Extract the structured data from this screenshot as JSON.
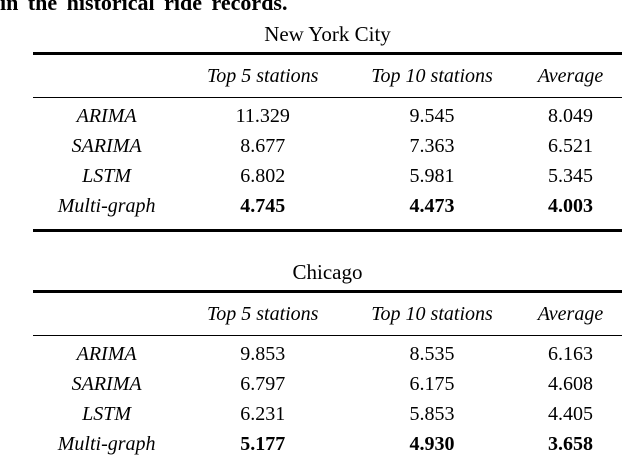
{
  "page": {
    "background_color": "#ffffff",
    "text_color": "#000000",
    "rule_color": "#000000"
  },
  "caption_fragment": "in the historical ride records.",
  "tables": [
    {
      "title": "New York City",
      "columns": [
        "",
        "Top 5 stations",
        "Top 10 stations",
        "Average"
      ],
      "rows": [
        {
          "label": "ARIMA",
          "values": [
            "11.329",
            "9.545",
            "8.049"
          ],
          "bold": false
        },
        {
          "label": "SARIMA",
          "values": [
            "8.677",
            "7.363",
            "6.521"
          ],
          "bold": false
        },
        {
          "label": "LSTM",
          "values": [
            "6.802",
            "5.981",
            "5.345"
          ],
          "bold": false
        },
        {
          "label": "Multi-graph",
          "values": [
            "4.745",
            "4.473",
            "4.003"
          ],
          "bold": true
        }
      ]
    },
    {
      "title": "Chicago",
      "columns": [
        "",
        "Top 5 stations",
        "Top 10 stations",
        "Average"
      ],
      "rows": [
        {
          "label": "ARIMA",
          "values": [
            "9.853",
            "8.535",
            "6.163"
          ],
          "bold": false
        },
        {
          "label": "SARIMA",
          "values": [
            "6.797",
            "6.175",
            "4.608"
          ],
          "bold": false
        },
        {
          "label": "LSTM",
          "values": [
            "6.231",
            "5.853",
            "4.405"
          ],
          "bold": false
        },
        {
          "label": "Multi-graph",
          "values": [
            "5.177",
            "4.930",
            "3.658"
          ],
          "bold": true
        }
      ]
    }
  ]
}
